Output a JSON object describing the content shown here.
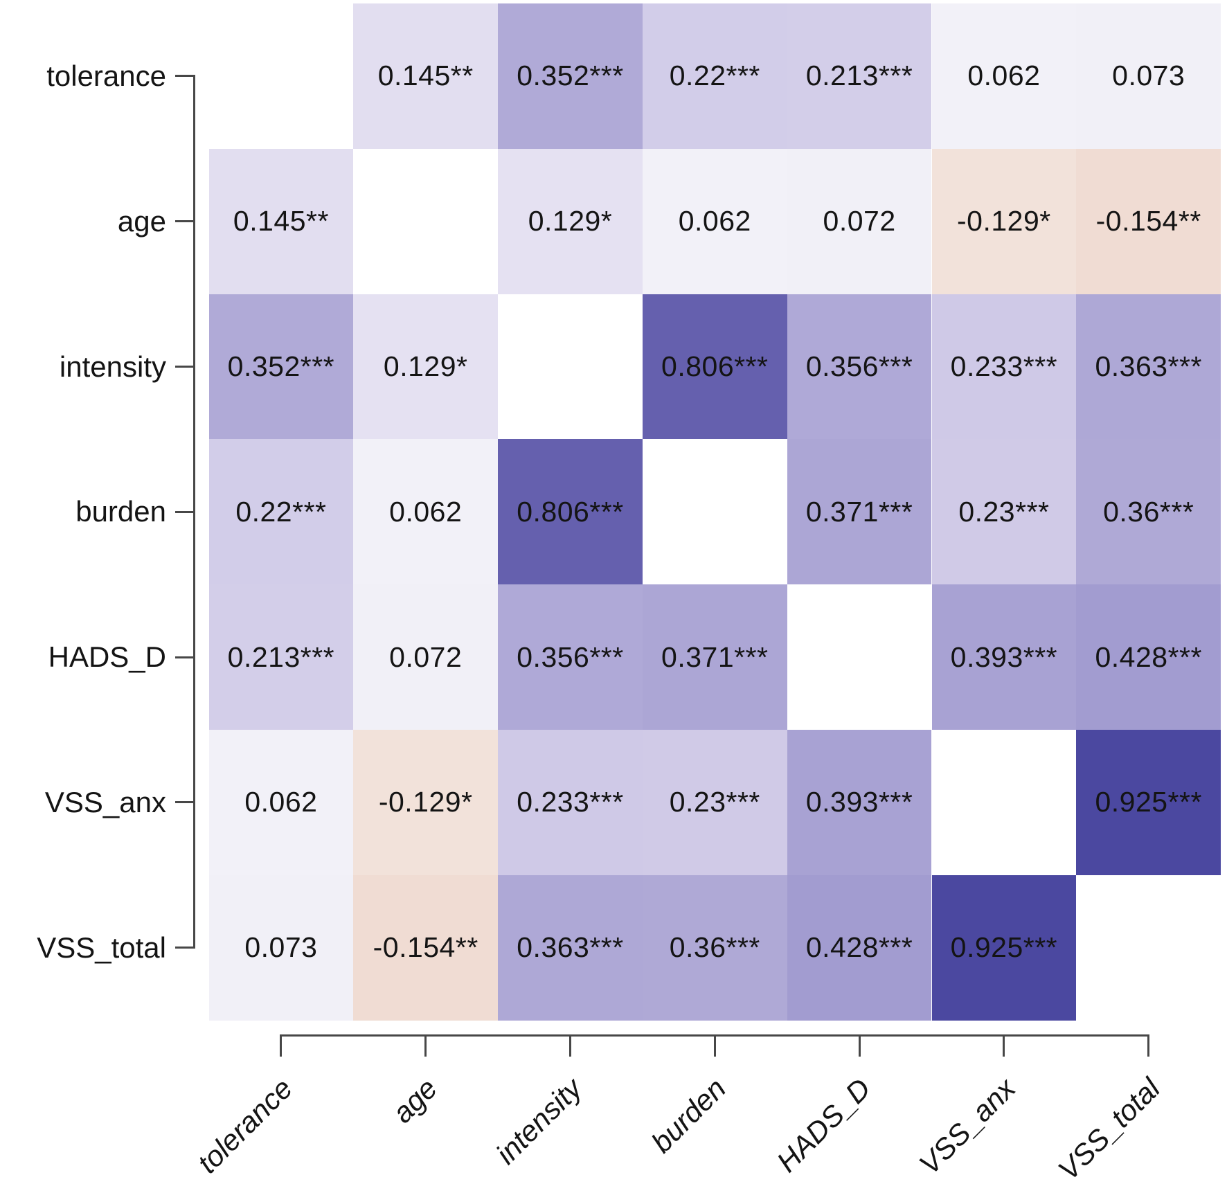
{
  "chart_data": {
    "type": "heatmap",
    "title": "",
    "xlabel": "",
    "ylabel": "",
    "legend": "none",
    "grid": false,
    "variables": [
      "tolerance",
      "age",
      "intensity",
      "burden",
      "HADS_D",
      "VSS_anx",
      "VSS_total"
    ],
    "y_axis_labels": [
      "tolerance",
      "age",
      "intensity",
      "burden",
      "HADS_D",
      "VSS_anx",
      "VSS_total"
    ],
    "x_axis_labels": [
      "tolerance",
      "age",
      "intensity",
      "burden",
      "HADS_D",
      "VSS_anx",
      "VSS_total"
    ],
    "matrix_values": [
      [
        null,
        0.145,
        0.352,
        0.22,
        0.213,
        0.062,
        0.073
      ],
      [
        0.145,
        null,
        0.129,
        0.062,
        0.072,
        -0.129,
        -0.154
      ],
      [
        0.352,
        0.129,
        null,
        0.806,
        0.356,
        0.233,
        0.363
      ],
      [
        0.22,
        0.062,
        0.806,
        null,
        0.371,
        0.23,
        0.36
      ],
      [
        0.213,
        0.072,
        0.356,
        0.371,
        null,
        0.393,
        0.428
      ],
      [
        0.062,
        -0.129,
        0.233,
        0.23,
        0.393,
        null,
        0.925
      ],
      [
        0.073,
        -0.154,
        0.363,
        0.36,
        0.428,
        0.925,
        null
      ]
    ],
    "display": [
      [
        "",
        "0.145**",
        "0.352***",
        "0.22***",
        "0.213***",
        "0.062",
        "0.073"
      ],
      [
        "0.145**",
        "",
        "0.129*",
        "0.062",
        "0.072",
        "-0.129*",
        "-0.154**"
      ],
      [
        "0.352***",
        "0.129*",
        "",
        "0.806***",
        "0.356***",
        "0.233***",
        "0.363***"
      ],
      [
        "0.22***",
        "0.062",
        "0.806***",
        "",
        "0.371***",
        "0.23***",
        "0.36***"
      ],
      [
        "0.213***",
        "0.072",
        "0.356***",
        "0.371***",
        "",
        "0.393***",
        "0.428***"
      ],
      [
        "0.062",
        "-0.129*",
        "0.233***",
        "0.23***",
        "0.393***",
        "",
        "0.925***"
      ],
      [
        "0.073",
        "-0.154**",
        "0.363***",
        "0.36***",
        "0.428***",
        "0.925***",
        ""
      ]
    ],
    "cell_colors": [
      [
        "#FFFFFF",
        "#E2DEF0",
        "#B0AAD7",
        "#D2CDE9",
        "#D3CEE9",
        "#F2F1F8",
        "#F1F0F7"
      ],
      [
        "#E2DEF0",
        "#FFFFFF",
        "#E5E1F2",
        "#F2F1F8",
        "#F1F0F7",
        "#F2E2DA",
        "#F0DCD3"
      ],
      [
        "#B0AAD7",
        "#E5E1F2",
        "#FFFFFF",
        "#6560AE",
        "#AFA9D7",
        "#CFC9E7",
        "#AEA8D6"
      ],
      [
        "#D2CDE9",
        "#F2F1F8",
        "#6560AE",
        "#FFFFFF",
        "#ACA6D5",
        "#D0CAE7",
        "#AFA9D6"
      ],
      [
        "#D3CEE9",
        "#F1F0F7",
        "#AFA9D7",
        "#ACA6D5",
        "#FFFFFF",
        "#A8A2D3",
        "#A29CD0"
      ],
      [
        "#F2F1F8",
        "#F2E2DA",
        "#CFC9E7",
        "#D0CAE7",
        "#A8A2D3",
        "#FFFFFF",
        "#4B48A0"
      ],
      [
        "#F1F0F7",
        "#F0DCD3",
        "#AEA8D6",
        "#AFA9D6",
        "#A29CD0",
        "#4B48A0",
        "#FFFFFF"
      ]
    ],
    "value_range": [
      -1,
      1
    ],
    "colors": {
      "positive_high": "#4B48A0",
      "zero": "#FFFFFF",
      "negative_shown_low": "#F0DCD3",
      "cell_text": "#141414",
      "axis": "#474747"
    }
  }
}
